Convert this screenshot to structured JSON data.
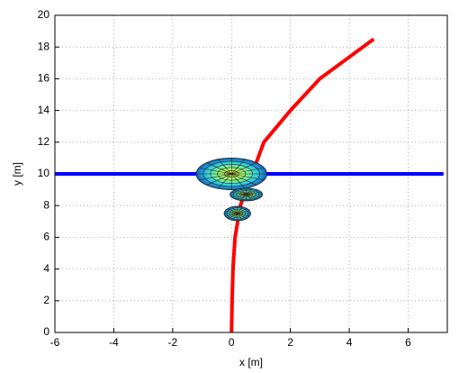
{
  "chart_data": {
    "type": "line",
    "xlabel": "x [m]",
    "ylabel": "y [m]",
    "xlim": [
      -6,
      7.33
    ],
    "ylim": [
      0,
      20
    ],
    "xticks": [
      -6,
      -4,
      -2,
      0,
      2,
      4,
      6
    ],
    "yticks": [
      0,
      2,
      4,
      6,
      8,
      10,
      12,
      14,
      16,
      18,
      20
    ],
    "grid": true,
    "series": [
      {
        "color": "#ff0000",
        "x": [
          0,
          0.02,
          0.05,
          0.12,
          0.3,
          0.7,
          1.1,
          2.0,
          3.0,
          4.83
        ],
        "y": [
          0,
          2,
          4,
          6,
          8,
          10,
          12,
          14,
          16,
          18.5
        ]
      },
      {
        "color": "#0000ff",
        "x": [
          -6,
          7.2
        ],
        "y": [
          10,
          10
        ]
      }
    ],
    "ellipses": [
      {
        "x": 0,
        "y": 10,
        "rx": 1.2,
        "ry": 1.0
      },
      {
        "x": 0.5,
        "y": 8.7,
        "rx": 0.55,
        "ry": 0.4
      },
      {
        "x": 0.2,
        "y": 7.5,
        "rx": 0.45,
        "ry": 0.45
      }
    ]
  }
}
